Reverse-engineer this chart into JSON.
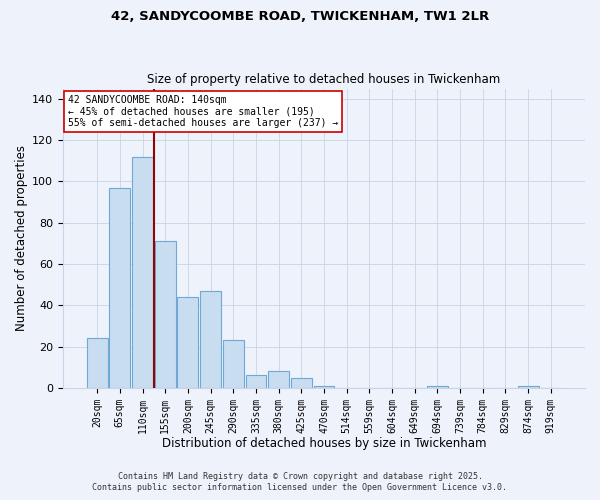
{
  "title1": "42, SANDYCOOMBE ROAD, TWICKENHAM, TW1 2LR",
  "title2": "Size of property relative to detached houses in Twickenham",
  "xlabel": "Distribution of detached houses by size in Twickenham",
  "ylabel": "Number of detached properties",
  "categories": [
    "20sqm",
    "65sqm",
    "110sqm",
    "155sqm",
    "200sqm",
    "245sqm",
    "290sqm",
    "335sqm",
    "380sqm",
    "425sqm",
    "470sqm",
    "514sqm",
    "559sqm",
    "604sqm",
    "649sqm",
    "694sqm",
    "739sqm",
    "784sqm",
    "829sqm",
    "874sqm",
    "919sqm"
  ],
  "values": [
    24,
    97,
    112,
    71,
    44,
    47,
    23,
    6,
    8,
    5,
    1,
    0,
    0,
    0,
    0,
    1,
    0,
    0,
    0,
    1,
    0
  ],
  "bar_color": "#c9ddf0",
  "bar_edge_color": "#6fa8d4",
  "bg_color": "#eef2fb",
  "grid_color": "#c8d4e8",
  "vline_color": "#990000",
  "vline_x_index": 2.5,
  "annotation_line1": "42 SANDYCOOMBE ROAD: 140sqm",
  "annotation_line2": "← 45% of detached houses are smaller (195)",
  "annotation_line3": "55% of semi-detached houses are larger (237) →",
  "annotation_box_color": "#ffffff",
  "annotation_box_edge": "#cc0000",
  "footer1": "Contains HM Land Registry data © Crown copyright and database right 2025.",
  "footer2": "Contains public sector information licensed under the Open Government Licence v3.0.",
  "ylim": [
    0,
    145
  ],
  "yticks": [
    0,
    20,
    40,
    60,
    80,
    100,
    120,
    140
  ]
}
